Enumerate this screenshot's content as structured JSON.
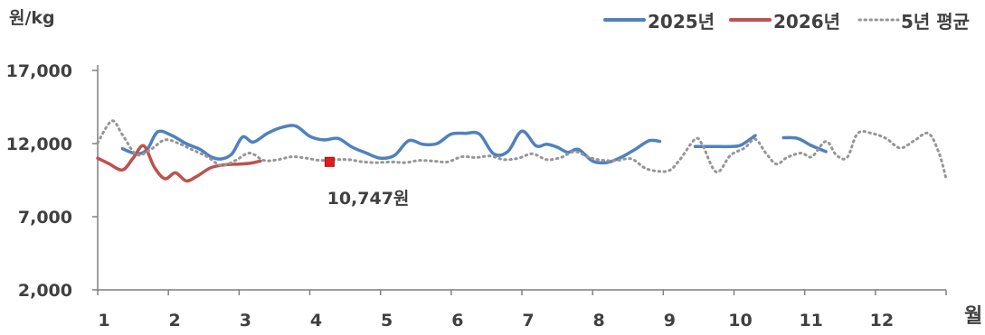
{
  "chart_data": {
    "type": "line",
    "y_unit_label": "원/kg",
    "x_unit_label": "월",
    "xlim": [
      1,
      13
    ],
    "ylim": [
      2000,
      17000
    ],
    "y_ticks": [
      2000,
      7000,
      12000,
      17000
    ],
    "y_tick_labels": [
      "2,000",
      "7,000",
      "12,000",
      "17,000"
    ],
    "x_ticks": [
      1,
      2,
      3,
      4,
      5,
      6,
      7,
      8,
      9,
      10,
      11,
      12
    ],
    "x_tick_labels": [
      "1",
      "2",
      "3",
      "4",
      "5",
      "6",
      "7",
      "8",
      "9",
      "10",
      "11",
      "12"
    ],
    "legend_position": "top-right",
    "grid": false,
    "series": [
      {
        "name": "2025년",
        "color": "#4f81bd",
        "style": "solid",
        "segments": [
          [
            [
              1.35,
              11650
            ],
            [
              1.55,
              11300
            ],
            [
              1.7,
              11600
            ],
            [
              1.85,
              12800
            ],
            [
              2.05,
              12550
            ],
            [
              2.25,
              12000
            ],
            [
              2.45,
              11600
            ],
            [
              2.6,
              11100
            ],
            [
              2.75,
              10950
            ],
            [
              2.9,
              11300
            ],
            [
              3.05,
              12450
            ],
            [
              3.2,
              12100
            ],
            [
              3.4,
              12700
            ],
            [
              3.6,
              13100
            ],
            [
              3.8,
              13200
            ],
            [
              4.0,
              12500
            ],
            [
              4.2,
              12250
            ],
            [
              4.4,
              12350
            ],
            [
              4.6,
              11750
            ],
            [
              4.8,
              11350
            ],
            [
              5.0,
              11000
            ],
            [
              5.2,
              11200
            ],
            [
              5.4,
              12200
            ],
            [
              5.6,
              11950
            ],
            [
              5.8,
              12000
            ],
            [
              6.0,
              12650
            ],
            [
              6.2,
              12700
            ],
            [
              6.4,
              12650
            ],
            [
              6.6,
              11300
            ],
            [
              6.8,
              11450
            ],
            [
              7.0,
              12850
            ],
            [
              7.2,
              11850
            ],
            [
              7.35,
              11950
            ],
            [
              7.5,
              11750
            ],
            [
              7.65,
              11400
            ],
            [
              7.8,
              11600
            ],
            [
              8.0,
              10800
            ],
            [
              8.2,
              10700
            ],
            [
              8.4,
              11050
            ],
            [
              8.6,
              11600
            ],
            [
              8.8,
              12200
            ],
            [
              8.95,
              12150
            ]
          ],
          [
            [
              9.45,
              11800
            ],
            [
              9.7,
              11800
            ],
            [
              9.95,
              11800
            ],
            [
              10.1,
              11900
            ],
            [
              10.3,
              12550
            ]
          ],
          [
            [
              10.7,
              12400
            ],
            [
              10.9,
              12350
            ],
            [
              11.1,
              11850
            ],
            [
              11.3,
              11450
            ]
          ]
        ]
      },
      {
        "name": "2026년",
        "color": "#c0504d",
        "style": "solid",
        "segments": [
          [
            [
              1.0,
              11000
            ],
            [
              1.15,
              10650
            ],
            [
              1.35,
              10200
            ],
            [
              1.5,
              11000
            ],
            [
              1.65,
              11850
            ],
            [
              1.8,
              10400
            ],
            [
              1.95,
              9600
            ],
            [
              2.1,
              10000
            ],
            [
              2.25,
              9450
            ],
            [
              2.4,
              9750
            ],
            [
              2.6,
              10350
            ],
            [
              2.8,
              10550
            ],
            [
              3.0,
              10600
            ],
            [
              3.15,
              10650
            ],
            [
              3.3,
              10800
            ]
          ]
        ]
      },
      {
        "name": "5년 평균",
        "color": "#969696",
        "style": "dotted",
        "segments": [
          [
            [
              1.0,
              12050
            ],
            [
              1.2,
              13550
            ],
            [
              1.35,
              12600
            ],
            [
              1.55,
              11250
            ],
            [
              1.75,
              11600
            ],
            [
              1.95,
              12250
            ],
            [
              2.15,
              12000
            ],
            [
              2.35,
              11550
            ],
            [
              2.55,
              11100
            ],
            [
              2.75,
              10500
            ],
            [
              2.95,
              10850
            ],
            [
              3.15,
              11350
            ],
            [
              3.35,
              10850
            ],
            [
              3.55,
              10900
            ],
            [
              3.75,
              11100
            ],
            [
              3.95,
              11000
            ],
            [
              4.15,
              10850
            ],
            [
              4.35,
              10900
            ],
            [
              4.55,
              10900
            ],
            [
              4.75,
              10750
            ],
            [
              4.95,
              10700
            ],
            [
              5.15,
              10750
            ],
            [
              5.35,
              10700
            ],
            [
              5.55,
              10850
            ],
            [
              5.75,
              10800
            ],
            [
              5.95,
              10750
            ],
            [
              6.15,
              11100
            ],
            [
              6.35,
              11050
            ],
            [
              6.55,
              11150
            ],
            [
              6.75,
              10900
            ],
            [
              6.95,
              11000
            ],
            [
              7.15,
              11300
            ],
            [
              7.35,
              10900
            ],
            [
              7.55,
              11050
            ],
            [
              7.75,
              11450
            ],
            [
              7.95,
              11050
            ],
            [
              8.15,
              10850
            ],
            [
              8.35,
              10850
            ],
            [
              8.55,
              10950
            ],
            [
              8.75,
              10300
            ],
            [
              8.95,
              10100
            ],
            [
              9.1,
              10200
            ],
            [
              9.25,
              11000
            ],
            [
              9.45,
              12300
            ],
            [
              9.55,
              11950
            ],
            [
              9.75,
              10050
            ],
            [
              9.95,
              11200
            ],
            [
              10.15,
              11700
            ],
            [
              10.3,
              12300
            ],
            [
              10.45,
              11350
            ],
            [
              10.6,
              10600
            ],
            [
              10.75,
              11050
            ],
            [
              10.95,
              11350
            ],
            [
              11.1,
              11100
            ],
            [
              11.3,
              12150
            ],
            [
              11.45,
              11200
            ],
            [
              11.6,
              11050
            ],
            [
              11.75,
              12700
            ],
            [
              11.95,
              12700
            ],
            [
              12.15,
              12350
            ],
            [
              12.35,
              11700
            ],
            [
              12.55,
              12200
            ],
            [
              12.75,
              12700
            ],
            [
              12.9,
              11350
            ],
            [
              13.0,
              9600
            ]
          ]
        ]
      }
    ],
    "annotations": [
      {
        "text": "10,747원",
        "x": 4.28,
        "y": 10747,
        "marker_color": "#e31a1c"
      }
    ]
  }
}
